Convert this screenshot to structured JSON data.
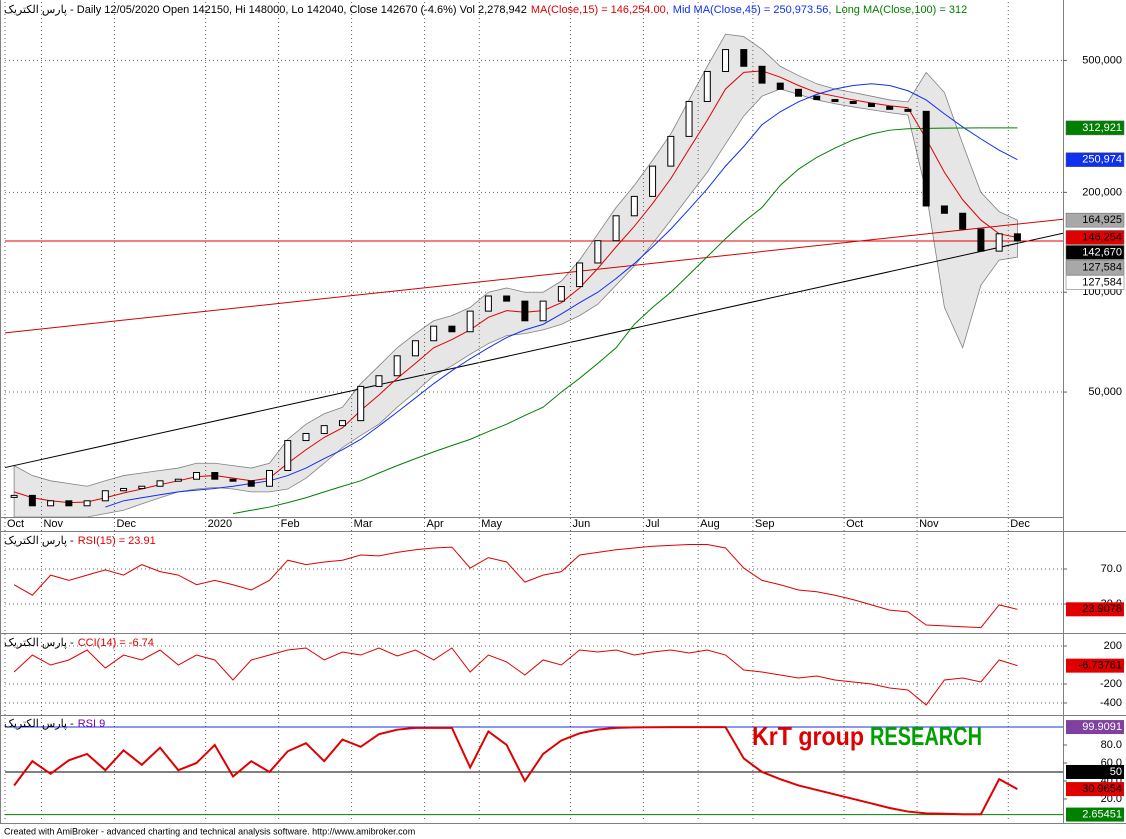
{
  "chart_data": [
    {
      "type": "price",
      "title": "پارس الکتریک - Daily 12/05/2020 Open 142150, Hi 148000, Lo 142040, Close 142670 (-4.6%) Vol 2,278,942",
      "log_scale": true,
      "grid": true,
      "color": "#000000",
      "categories": [
        "Oct",
        null,
        "Nov",
        null,
        null,
        null,
        "Dec",
        null,
        null,
        null,
        null,
        "2020",
        null,
        null,
        null,
        "Feb",
        null,
        null,
        null,
        "Mar",
        null,
        null,
        null,
        "Apr",
        null,
        null,
        "May",
        null,
        null,
        null,
        null,
        "Jun",
        null,
        null,
        null,
        "Jul",
        null,
        null,
        "Aug",
        null,
        null,
        "Sep",
        null,
        null,
        null,
        null,
        "Oct",
        null,
        null,
        null,
        "Nov",
        null,
        null,
        null,
        null,
        "Dec"
      ],
      "values": [
        24400,
        22700,
        23500,
        22700,
        23500,
        25200,
        25600,
        26000,
        27000,
        27300,
        28600,
        27300,
        27000,
        26000,
        29000,
        35700,
        37500,
        39600,
        41000,
        52000,
        56000,
        64300,
        71400,
        79000,
        76000,
        87700,
        97400,
        94000,
        82000,
        94000,
        104000,
        122500,
        143000,
        170000,
        194500,
        240000,
        295000,
        376000,
        463000,
        539000,
        480000,
        427000,
        409000,
        390000,
        381000,
        376000,
        371000,
        363000,
        356000,
        351000,
        182000,
        173000,
        155000,
        133000,
        150000,
        142670
      ],
      "band": {
        "color": "#e6e6e6",
        "edge_color": "#808080",
        "upper": [
          30000,
          28000,
          27000,
          26500,
          26000,
          27000,
          28000,
          28500,
          29000,
          29500,
          30500,
          30500,
          30000,
          29500,
          30500,
          36000,
          40000,
          43000,
          45000,
          53000,
          60000,
          68000,
          75000,
          82000,
          85000,
          90000,
          100000,
          103000,
          100000,
          100000,
          108000,
          125000,
          150000,
          180000,
          210000,
          250000,
          300000,
          380000,
          480000,
          600000,
          590000,
          540000,
          480000,
          450000,
          425000,
          410000,
          400000,
          390000,
          380000,
          375000,
          460000,
          400000,
          280000,
          200000,
          175000,
          164925
        ],
        "lower": [
          21000,
          21000,
          21000,
          21000,
          21000,
          21500,
          22000,
          23000,
          24000,
          25000,
          25500,
          25800,
          25500,
          25000,
          25000,
          25500,
          27500,
          30500,
          34000,
          37000,
          40000,
          45000,
          50000,
          56000,
          60000,
          65000,
          70000,
          74000,
          75000,
          77000,
          80000,
          85000,
          92000,
          105000,
          120000,
          140000,
          165000,
          195000,
          230000,
          280000,
          340000,
          390000,
          410000,
          395000,
          380000,
          370000,
          362000,
          355000,
          348000,
          342000,
          200000,
          90000,
          68000,
          105000,
          125000,
          127584
        ]
      },
      "series": [
        {
          "name": "MA(Close,15) = 146,254.00,",
          "color": "#e00000",
          "values": [
            25000,
            24000,
            23500,
            23200,
            23300,
            24000,
            24800,
            25500,
            26300,
            27000,
            27800,
            28000,
            27500,
            27000,
            27500,
            30500,
            33500,
            36500,
            39000,
            44000,
            49000,
            55000,
            61000,
            68000,
            72000,
            77000,
            84000,
            88000,
            87000,
            88000,
            93000,
            103000,
            118000,
            137000,
            158000,
            185000,
            220000,
            270000,
            330000,
            410000,
            460000,
            465000,
            445000,
            420000,
            400000,
            390000,
            380000,
            372000,
            365000,
            360000,
            290000,
            230000,
            190000,
            165000,
            150000,
            146254
          ]
        },
        {
          "name": "Mid MA(Close,45) = 250,973.56,",
          "color": "#1030f0",
          "values": [
            null,
            null,
            null,
            null,
            null,
            22500,
            23500,
            24000,
            24500,
            25000,
            25300,
            25600,
            26000,
            26500,
            27000,
            28000,
            29500,
            31500,
            33500,
            36000,
            39500,
            43500,
            48000,
            53000,
            58000,
            63000,
            68000,
            73000,
            77000,
            80000,
            86000,
            93000,
            100000,
            110000,
            122000,
            137000,
            155000,
            178000,
            205000,
            240000,
            275000,
            320000,
            350000,
            375000,
            395000,
            410000,
            420000,
            425000,
            420000,
            405000,
            380000,
            345000,
            315000,
            290000,
            268000,
            250974
          ]
        },
        {
          "name": "Long MA(Close,100) = 312",
          "color": "#008000",
          "values": [
            null,
            null,
            null,
            null,
            null,
            null,
            null,
            null,
            null,
            null,
            null,
            null,
            21500,
            22000,
            22500,
            23200,
            24000,
            25000,
            26000,
            27000,
            28500,
            30000,
            31500,
            33000,
            34500,
            36000,
            38000,
            40000,
            42500,
            45000,
            50000,
            55000,
            61000,
            68000,
            80000,
            90000,
            100000,
            113000,
            128000,
            145000,
            163000,
            180000,
            210000,
            235000,
            255000,
            272000,
            288000,
            300000,
            308000,
            311000,
            312000,
            312500,
            312800,
            312900,
            312921,
            312921
          ]
        }
      ],
      "trendlines": [
        {
          "color": "#d00000",
          "from": [
            -0.5,
            75400
          ],
          "to": [
            57.5,
            166000
          ]
        },
        {
          "color": "#000000",
          "from": [
            -0.5,
            29600
          ],
          "to": [
            57.5,
            150600
          ]
        }
      ],
      "hline": {
        "value": 142670,
        "color": "#e00000"
      },
      "price_labels": [
        {
          "value": 312921,
          "label": "312,921",
          "box_color": "#008000",
          "text_color": "#ffffff"
        },
        {
          "value": 250974,
          "label": "250,974",
          "box_color": "#1030f0",
          "text_color": "#ffffff"
        },
        {
          "value": 164925,
          "label": "164,925",
          "box_color": "#a8a8a8",
          "text_color": "#000000"
        },
        {
          "value": 146254,
          "label": "146,254",
          "box_color": "#e00000",
          "text_color": "#000000"
        },
        {
          "value": 142670,
          "label": "142,670",
          "box_color": "#000000",
          "text_color": "#ffffff"
        },
        {
          "value": 127584,
          "label": "127,584",
          "box_color": "#a8a8a8",
          "text_color": "#000000"
        },
        {
          "value": 127584,
          "label": "127,584",
          "box_color": "#ffffff",
          "text_color": "#000000"
        }
      ],
      "ylim": [
        21000,
        750000
      ],
      "yticks": [
        {
          "value": 50000,
          "label": "50,000"
        },
        {
          "value": 100000,
          "label": "100,000"
        },
        {
          "value": 200000,
          "label": "200,000"
        },
        {
          "value": 500000,
          "label": "500,000"
        }
      ]
    },
    {
      "type": "line",
      "title": "پارس الکتریک -",
      "grid": true,
      "series": [
        {
          "name": "RSI(15) = 23.91",
          "color": "#e00000",
          "width": 1,
          "values": [
            52,
            40,
            63,
            57,
            63,
            69,
            63,
            75,
            67,
            63,
            52,
            57,
            52,
            46,
            57,
            80,
            75,
            78,
            80,
            86,
            85,
            89,
            92,
            94,
            95,
            71,
            83,
            78,
            55,
            63,
            67,
            86,
            89,
            92,
            94,
            96,
            97,
            98,
            98,
            94,
            71,
            57,
            52,
            46,
            44,
            40,
            35,
            29,
            23,
            21,
            6,
            5,
            4,
            3,
            29,
            23.91
          ]
        }
      ],
      "levels": [
        {
          "value": 23.9078,
          "label": "23.9078",
          "box_color": "#e00000",
          "text_color": "#000000"
        }
      ],
      "ylim": [
        -2,
        111.1
      ],
      "yticks": [
        {
          "value": 30,
          "label": "30.0"
        },
        {
          "value": 70,
          "label": "70.0"
        }
      ]
    },
    {
      "type": "line",
      "title": "پارس الکتریک -",
      "grid": true,
      "series": [
        {
          "name": "CCI(14) = -6.74",
          "color": "#e00000",
          "width": 1,
          "values": [
            -74,
            105,
            0,
            53,
            158,
            -32,
            105,
            53,
            158,
            0,
            105,
            53,
            -158,
            53,
            105,
            158,
            179,
            53,
            137,
            105,
            179,
            95,
            158,
            53,
            179,
            -74,
            105,
            32,
            -105,
            53,
            0,
            158,
            137,
            158,
            105,
            137,
            158,
            126,
            158,
            105,
            -53,
            -74,
            -105,
            -137,
            -116,
            -158,
            -179,
            -200,
            -242,
            -263,
            -421,
            -158,
            -137,
            -179,
            53,
            -6.74
          ]
        }
      ],
      "levels": [
        {
          "value": -6.73761,
          "label": "-6.73761",
          "box_color": "#e00000",
          "text_color": "#000000"
        }
      ],
      "ylim": [
        -516,
        316
      ],
      "yticks": [
        -400,
        -200,
        200
      ]
    },
    {
      "type": "line",
      "title": "پارس الکتریک -",
      "grid": false,
      "series": [
        {
          "name": "RSI 9",
          "name_color": "#8000b0",
          "color": "#e00000",
          "width": 2,
          "values": [
            35,
            62,
            48,
            63,
            70,
            52,
            74,
            58,
            77,
            52,
            60,
            80,
            45,
            62,
            50,
            73,
            82,
            62,
            86,
            78,
            92,
            97,
            99,
            99,
            99,
            55,
            95,
            80,
            40,
            70,
            85,
            93,
            97,
            99,
            99.5,
            99.7,
            99.8,
            99.9,
            99.9,
            99.9,
            65,
            50,
            42,
            35,
            30,
            25,
            20,
            15,
            10,
            6,
            4,
            3.5,
            3,
            3,
            42,
            30.9654
          ]
        }
      ],
      "levels": [
        {
          "value": 99.9091,
          "label": "99.9091",
          "box_color": "#8040a0",
          "text_color": "#ffffff",
          "line_color": "#1030f0"
        },
        {
          "value": 50,
          "label": "50",
          "box_color": "#000000",
          "text_color": "#ffffff",
          "line_color": "#000000"
        },
        {
          "value": 30.9654,
          "label": "30.9654",
          "box_color": "#e00000",
          "text_color": "#000000"
        },
        {
          "value": 2.65451,
          "label": "2.65451",
          "box_color": "#008000",
          "text_color": "#ffffff",
          "line_color": "#008000"
        }
      ],
      "watermark": [
        {
          "text": "KrT group",
          "color": "#e00000"
        },
        {
          "text": "RESEARCH",
          "color": "#00a000"
        }
      ],
      "ylim": [
        -5.6,
        112.2
      ],
      "yticks": [
        {
          "value": 20,
          "label": "20.0"
        },
        {
          "value": 40,
          "label": "40.0"
        },
        {
          "value": 60,
          "label": "60.0"
        },
        {
          "value": 80,
          "label": "80.0"
        }
      ]
    }
  ],
  "footer": "Created with AmiBroker - advanced charting and technical analysis software. http://www.amibroker.com"
}
